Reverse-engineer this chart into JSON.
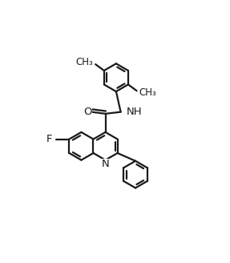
{
  "background_color": "#ffffff",
  "line_color": "#1a1a1a",
  "line_width": 1.6,
  "font_size": 9.5,
  "xlim": [
    0,
    10
  ],
  "ylim": [
    0,
    11.5
  ]
}
